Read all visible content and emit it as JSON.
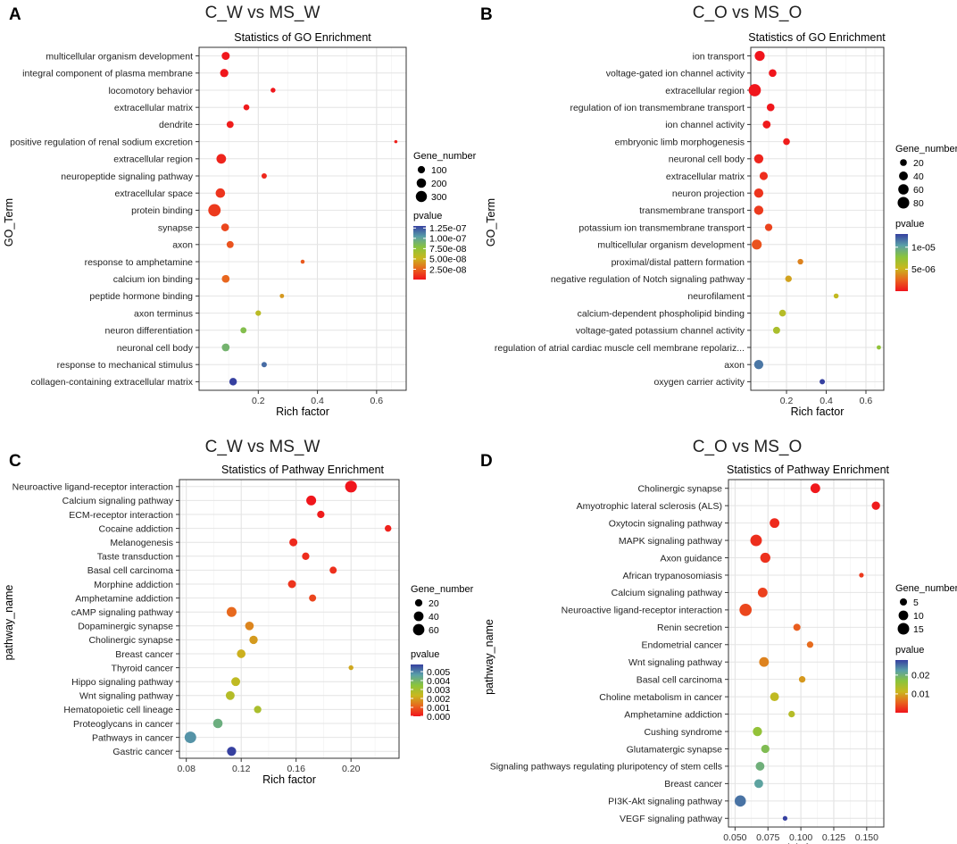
{
  "chart_data": [
    {
      "panel_label": "A",
      "heading": "C_W vs MS_W",
      "type": "scatter",
      "title": "Statistics of GO Enrichment",
      "xlabel": "Rich factor",
      "ylabel": "GO_Term",
      "xlim": [
        0.0,
        0.7
      ],
      "xticks": [
        0.2,
        0.4,
        0.6
      ],
      "xtick_labels": [
        "0.2",
        "0.4",
        "0.6"
      ],
      "size_legend": {
        "title": "Gene_number",
        "values": [
          100,
          200,
          300
        ],
        "labels": [
          "100",
          "200",
          "300"
        ],
        "min": 2,
        "max": 400
      },
      "color_legend": {
        "title": "pvalue",
        "min": 0,
        "max": 1.3e-07,
        "ticks": [
          1.25e-07,
          1e-07,
          7.5e-08,
          5e-08,
          2.5e-08
        ],
        "labels": [
          "1.25e-07",
          "1.00e-07",
          "7.50e-08",
          "5.00e-08",
          "2.50e-08"
        ]
      },
      "points": [
        {
          "term": "multicellular organism development",
          "x": 0.09,
          "genes": 130,
          "pvalue": 1e-09
        },
        {
          "term": "integral component of plasma membrane",
          "x": 0.085,
          "genes": 140,
          "pvalue": 1e-09
        },
        {
          "term": "locomotory behavior",
          "x": 0.25,
          "genes": 30,
          "pvalue": 1e-09
        },
        {
          "term": "extracellular matrix",
          "x": 0.16,
          "genes": 55,
          "pvalue": 2e-09
        },
        {
          "term": "dendrite",
          "x": 0.105,
          "genes": 90,
          "pvalue": 3e-09
        },
        {
          "term": "positive regulation of renal sodium excretion",
          "x": 0.665,
          "genes": 6,
          "pvalue": 4e-09
        },
        {
          "term": "extracellular region",
          "x": 0.075,
          "genes": 210,
          "pvalue": 5e-09
        },
        {
          "term": "neuropeptide signaling pathway",
          "x": 0.22,
          "genes": 40,
          "pvalue": 6e-09
        },
        {
          "term": "extracellular space",
          "x": 0.072,
          "genes": 200,
          "pvalue": 1e-08
        },
        {
          "term": "protein binding",
          "x": 0.052,
          "genes": 390,
          "pvalue": 1.2e-08
        },
        {
          "term": "synapse",
          "x": 0.088,
          "genes": 120,
          "pvalue": 1.6e-08
        },
        {
          "term": "axon",
          "x": 0.105,
          "genes": 90,
          "pvalue": 2e-08
        },
        {
          "term": "response to amphetamine",
          "x": 0.35,
          "genes": 15,
          "pvalue": 2.2e-08
        },
        {
          "term": "calcium ion binding",
          "x": 0.09,
          "genes": 120,
          "pvalue": 2.6e-08
        },
        {
          "term": "peptide hormone binding",
          "x": 0.28,
          "genes": 20,
          "pvalue": 4.2e-08
        },
        {
          "term": "axon terminus",
          "x": 0.2,
          "genes": 45,
          "pvalue": 5.8e-08
        },
        {
          "term": "neuron differentiation",
          "x": 0.15,
          "genes": 60,
          "pvalue": 8.2e-08
        },
        {
          "term": "neuronal cell body",
          "x": 0.09,
          "genes": 120,
          "pvalue": 9e-08
        },
        {
          "term": "response to mechanical stimulus",
          "x": 0.22,
          "genes": 40,
          "pvalue": 1.18e-07
        },
        {
          "term": "collagen-containing extracellular matrix",
          "x": 0.115,
          "genes": 110,
          "pvalue": 1.3e-07
        }
      ]
    },
    {
      "panel_label": "B",
      "heading": "C_O vs MS_O",
      "type": "scatter",
      "title": "Statistics of GO Enrichment",
      "xlabel": "Rich factor",
      "ylabel": "GO_Term",
      "xlim": [
        0.02,
        0.69
      ],
      "xticks": [
        0.2,
        0.4,
        0.6
      ],
      "xtick_labels": [
        "0.2",
        "0.4",
        "0.6"
      ],
      "size_legend": {
        "title": "Gene_number",
        "values": [
          20,
          40,
          60,
          80
        ],
        "labels": [
          "20",
          "40",
          "60",
          "80"
        ],
        "min": 1,
        "max": 95
      },
      "color_legend": {
        "title": "pvalue",
        "min": 0,
        "max": 1.3e-05,
        "ticks": [
          1e-05,
          5e-06
        ],
        "labels": [
          "1e-05",
          "5e-06"
        ]
      },
      "points": [
        {
          "term": "ion transport",
          "x": 0.065,
          "genes": 55,
          "pvalue": 1e-08
        },
        {
          "term": "voltage-gated ion channel activity",
          "x": 0.13,
          "genes": 28,
          "pvalue": 2e-08
        },
        {
          "term": "extracellular region",
          "x": 0.04,
          "genes": 90,
          "pvalue": 5e-08
        },
        {
          "term": "regulation of ion transmembrane transport",
          "x": 0.12,
          "genes": 28,
          "pvalue": 1e-07
        },
        {
          "term": "ion channel activity",
          "x": 0.1,
          "genes": 30,
          "pvalue": 2e-07
        },
        {
          "term": "embryonic limb morphogenesis",
          "x": 0.2,
          "genes": 20,
          "pvalue": 3e-07
        },
        {
          "term": "neuronal cell body",
          "x": 0.06,
          "genes": 45,
          "pvalue": 5e-07
        },
        {
          "term": "extracellular matrix",
          "x": 0.085,
          "genes": 33,
          "pvalue": 8e-07
        },
        {
          "term": "neuron projection",
          "x": 0.06,
          "genes": 45,
          "pvalue": 1e-06
        },
        {
          "term": "transmembrane transport",
          "x": 0.06,
          "genes": 45,
          "pvalue": 1.2e-06
        },
        {
          "term": "potassium ion transmembrane transport",
          "x": 0.11,
          "genes": 25,
          "pvalue": 1.5e-06
        },
        {
          "term": "multicellular organism development",
          "x": 0.05,
          "genes": 55,
          "pvalue": 2e-06
        },
        {
          "term": "proximal/distal pattern formation",
          "x": 0.27,
          "genes": 12,
          "pvalue": 3.5e-06
        },
        {
          "term": "negative regulation of Notch signaling pathway",
          "x": 0.21,
          "genes": 18,
          "pvalue": 4.5e-06
        },
        {
          "term": "neurofilament",
          "x": 0.45,
          "genes": 8,
          "pvalue": 5.5e-06
        },
        {
          "term": "calcium-dependent phospholipid binding",
          "x": 0.18,
          "genes": 20,
          "pvalue": 6e-06
        },
        {
          "term": "voltage-gated potassium channel activity",
          "x": 0.15,
          "genes": 22,
          "pvalue": 6.5e-06
        },
        {
          "term": "regulation of atrial cardiac muscle cell membrane repolariz...",
          "x": 0.665,
          "genes": 5,
          "pvalue": 7.5e-06
        },
        {
          "term": "axon",
          "x": 0.06,
          "genes": 45,
          "pvalue": 1.15e-05
        },
        {
          "term": "oxygen carrier activity",
          "x": 0.38,
          "genes": 10,
          "pvalue": 1.3e-05
        }
      ]
    },
    {
      "panel_label": "C",
      "heading": "C_W vs MS_W",
      "type": "scatter",
      "title": "Statistics of Pathway Enrichment",
      "xlabel": "Rich factor",
      "ylabel": "pathway_name",
      "xlim": [
        0.075,
        0.235
      ],
      "xticks": [
        0.08,
        0.12,
        0.16,
        0.2
      ],
      "xtick_labels": [
        "0.08",
        "0.12",
        "0.16",
        "0.20"
      ],
      "size_legend": {
        "title": "Gene_number",
        "values": [
          20,
          40,
          60
        ],
        "labels": [
          "20",
          "40",
          "60"
        ],
        "min": 1,
        "max": 75
      },
      "color_legend": {
        "title": "pvalue",
        "min": 0,
        "max": 0.0058,
        "ticks": [
          0.005,
          0.004,
          0.003,
          0.002,
          0.001,
          0.0
        ],
        "labels": [
          "0.005",
          "0.004",
          "0.003",
          "0.002",
          "0.001",
          "0.000"
        ]
      },
      "points": [
        {
          "term": "Neuroactive ligand-receptor interaction",
          "x": 0.2,
          "genes": 65,
          "pvalue": 1e-05
        },
        {
          "term": "Calcium signaling pathway",
          "x": 0.171,
          "genes": 42,
          "pvalue": 3e-05
        },
        {
          "term": "ECM-receptor interaction",
          "x": 0.178,
          "genes": 20,
          "pvalue": 0.0001
        },
        {
          "term": "Cocaine addiction",
          "x": 0.227,
          "genes": 15,
          "pvalue": 0.0002
        },
        {
          "term": "Melanogenesis",
          "x": 0.158,
          "genes": 25,
          "pvalue": 0.0003
        },
        {
          "term": "Taste transduction",
          "x": 0.167,
          "genes": 20,
          "pvalue": 0.00035
        },
        {
          "term": "Basal cell carcinoma",
          "x": 0.187,
          "genes": 18,
          "pvalue": 0.0004
        },
        {
          "term": "Morphine addiction",
          "x": 0.157,
          "genes": 25,
          "pvalue": 0.00045
        },
        {
          "term": "Amphetamine addiction",
          "x": 0.172,
          "genes": 18,
          "pvalue": 0.0007
        },
        {
          "term": "cAMP signaling pathway",
          "x": 0.113,
          "genes": 42,
          "pvalue": 0.0012
        },
        {
          "term": "Dopaminergic synapse",
          "x": 0.126,
          "genes": 30,
          "pvalue": 0.0016
        },
        {
          "term": "Cholinergic synapse",
          "x": 0.129,
          "genes": 28,
          "pvalue": 0.0019
        },
        {
          "term": "Breast cancer",
          "x": 0.12,
          "genes": 30,
          "pvalue": 0.0022
        },
        {
          "term": "Thyroid cancer",
          "x": 0.2,
          "genes": 6,
          "pvalue": 0.0021
        },
        {
          "term": "Hippo signaling pathway",
          "x": 0.116,
          "genes": 32,
          "pvalue": 0.0025
        },
        {
          "term": "Wnt signaling pathway",
          "x": 0.112,
          "genes": 32,
          "pvalue": 0.0027
        },
        {
          "term": "Hematopoietic cell lineage",
          "x": 0.132,
          "genes": 20,
          "pvalue": 0.0029
        },
        {
          "term": "Proteoglycans in cancer",
          "x": 0.103,
          "genes": 38,
          "pvalue": 0.0042
        },
        {
          "term": "Pathways in cancer",
          "x": 0.083,
          "genes": 62,
          "pvalue": 0.0048
        },
        {
          "term": "Gastric cancer",
          "x": 0.113,
          "genes": 35,
          "pvalue": 0.0058
        }
      ]
    },
    {
      "panel_label": "D",
      "heading": "C_O vs MS_O",
      "type": "scatter",
      "title": "Statistics of Pathway Enrichment",
      "xlabel": "Rich factor",
      "ylabel": "pathway_name",
      "xlim": [
        0.045,
        0.163
      ],
      "xticks": [
        0.05,
        0.075,
        0.1,
        0.125,
        0.15
      ],
      "xtick_labels": [
        "0.050",
        "0.075",
        "0.100",
        "0.125",
        "0.150"
      ],
      "size_legend": {
        "title": "Gene_number",
        "values": [
          5,
          10,
          15
        ],
        "labels": [
          "5",
          "10",
          "15"
        ],
        "min": 1,
        "max": 18
      },
      "color_legend": {
        "title": "pvalue",
        "min": 0,
        "max": 0.028,
        "ticks": [
          0.02,
          0.01
        ],
        "labels": [
          "0.02",
          "0.01"
        ]
      },
      "points": [
        {
          "term": "Cholinergic synapse",
          "x": 0.111,
          "genes": 10,
          "pvalue": 0.0003
        },
        {
          "term": "Amyotrophic lateral sclerosis (ALS)",
          "x": 0.157,
          "genes": 7,
          "pvalue": 0.0005
        },
        {
          "term": "Oxytocin signaling pathway",
          "x": 0.08,
          "genes": 10,
          "pvalue": 0.0015
        },
        {
          "term": "MAPK signaling pathway",
          "x": 0.066,
          "genes": 15,
          "pvalue": 0.0018
        },
        {
          "term": "Axon guidance",
          "x": 0.073,
          "genes": 11,
          "pvalue": 0.002
        },
        {
          "term": "African trypanosomiasis",
          "x": 0.146,
          "genes": 2,
          "pvalue": 0.0025
        },
        {
          "term": "Calcium signaling pathway",
          "x": 0.071,
          "genes": 10,
          "pvalue": 0.003
        },
        {
          "term": "Neuroactive ligand-receptor interaction",
          "x": 0.058,
          "genes": 17,
          "pvalue": 0.0035
        },
        {
          "term": "Renin secretion",
          "x": 0.097,
          "genes": 5,
          "pvalue": 0.005
        },
        {
          "term": "Endometrial cancer",
          "x": 0.107,
          "genes": 4,
          "pvalue": 0.006
        },
        {
          "term": "Wnt signaling pathway",
          "x": 0.072,
          "genes": 10,
          "pvalue": 0.0075
        },
        {
          "term": "Basal cell carcinoma",
          "x": 0.101,
          "genes": 4,
          "pvalue": 0.009
        },
        {
          "term": "Choline metabolism in cancer",
          "x": 0.08,
          "genes": 8,
          "pvalue": 0.012
        },
        {
          "term": "Amphetamine addiction",
          "x": 0.093,
          "genes": 4,
          "pvalue": 0.013
        },
        {
          "term": "Cushing syndrome",
          "x": 0.067,
          "genes": 9,
          "pvalue": 0.016
        },
        {
          "term": "Glutamatergic synapse",
          "x": 0.073,
          "genes": 7,
          "pvalue": 0.018
        },
        {
          "term": "Signaling pathways regulating pluripotency of stem cells",
          "x": 0.069,
          "genes": 8,
          "pvalue": 0.02
        },
        {
          "term": "Breast cancer",
          "x": 0.068,
          "genes": 8,
          "pvalue": 0.022
        },
        {
          "term": "PI3K-Akt signaling pathway",
          "x": 0.054,
          "genes": 14,
          "pvalue": 0.025
        },
        {
          "term": "VEGF signaling pathway",
          "x": 0.088,
          "genes": 2,
          "pvalue": 0.028
        }
      ]
    }
  ]
}
